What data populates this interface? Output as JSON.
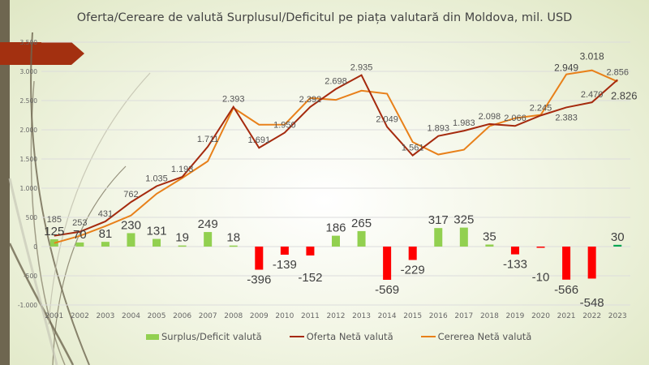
{
  "chart_data": {
    "type": "bar+line",
    "title": "Oferta/Cereare  de valută Surplusul/Deficitul pe piața valutară din Moldova, mil. USD",
    "xlabel": "",
    "ylabel": "",
    "ylim": [
      -1000,
      3500
    ],
    "yticks": [
      -1000,
      -500,
      0,
      500,
      1000,
      1500,
      2000,
      2500,
      3000,
      3500
    ],
    "ytick_labels": [
      "-1.000",
      "-500",
      "0",
      "500",
      "1.000",
      "1.500",
      "2.000",
      "2.500",
      "3.000",
      "3.500"
    ],
    "grid": true,
    "legend_position": "bottom",
    "categories": [
      "2001",
      "2002",
      "2003",
      "2004",
      "2005",
      "2006",
      "2007",
      "2008",
      "2009",
      "2010",
      "2011",
      "2012",
      "2013",
      "2014",
      "2015",
      "2016",
      "2017",
      "2018",
      "2019",
      "2020",
      "2021",
      "2022",
      "2023"
    ],
    "series": [
      {
        "name": "Surplus/Deficit valută",
        "type": "bar",
        "color_positive": "#92d050",
        "color_negative": "#ff0000",
        "color_last": "#00a650",
        "values": [
          125,
          70,
          81,
          230,
          131,
          19,
          249,
          18,
          -396,
          -139,
          -152,
          186,
          265,
          -569,
          -229,
          317,
          325,
          35,
          -133,
          -10,
          -566,
          -548,
          30
        ],
        "labels": [
          "125",
          "70",
          "81",
          "230",
          "131",
          "19",
          "249",
          "18",
          "-396",
          "-139",
          "-152",
          "186",
          "265",
          "-569",
          "-229",
          "317",
          "325",
          "35",
          "-133",
          "-10",
          "-566",
          "-548",
          "30"
        ]
      },
      {
        "name": "Oferta Netă valută",
        "type": "line",
        "color": "#a52a0e",
        "values": [
          185,
          253,
          431,
          762,
          1035,
          1193,
          1711,
          2393,
          1691,
          1950,
          2392,
          2698,
          2935,
          2049,
          1561,
          1893,
          1983,
          2098,
          2066,
          2245,
          2383,
          2470,
          2856
        ],
        "labels": [
          "185",
          "253",
          "431",
          "762",
          "1.035",
          "1.193",
          "1.711",
          "2.393",
          "1.691",
          "1.950",
          "2.392",
          "2.698",
          "2.935",
          "2.049",
          "1.561",
          "1.893",
          "1.983",
          "2.098",
          "2.066",
          "2.245",
          "2.383",
          "2.470",
          "2.856"
        ]
      },
      {
        "name": "Cererea Netă valută",
        "type": "line",
        "color": "#e8801a",
        "values": [
          60,
          183,
          350,
          532,
          904,
          1174,
          1462,
          2375,
          2087,
          2089,
          2544,
          2512,
          2670,
          2618,
          1790,
          1576,
          1658,
          2063,
          2199,
          2255,
          2949,
          3018,
          2826
        ],
        "labels": [
          null,
          null,
          null,
          null,
          null,
          null,
          null,
          null,
          null,
          null,
          null,
          null,
          null,
          null,
          null,
          null,
          null,
          null,
          null,
          null,
          "2.949",
          "3.018",
          "2.826"
        ]
      }
    ]
  },
  "decor": {
    "banner_color": "#a33010",
    "strip_color": "#6e6650"
  }
}
